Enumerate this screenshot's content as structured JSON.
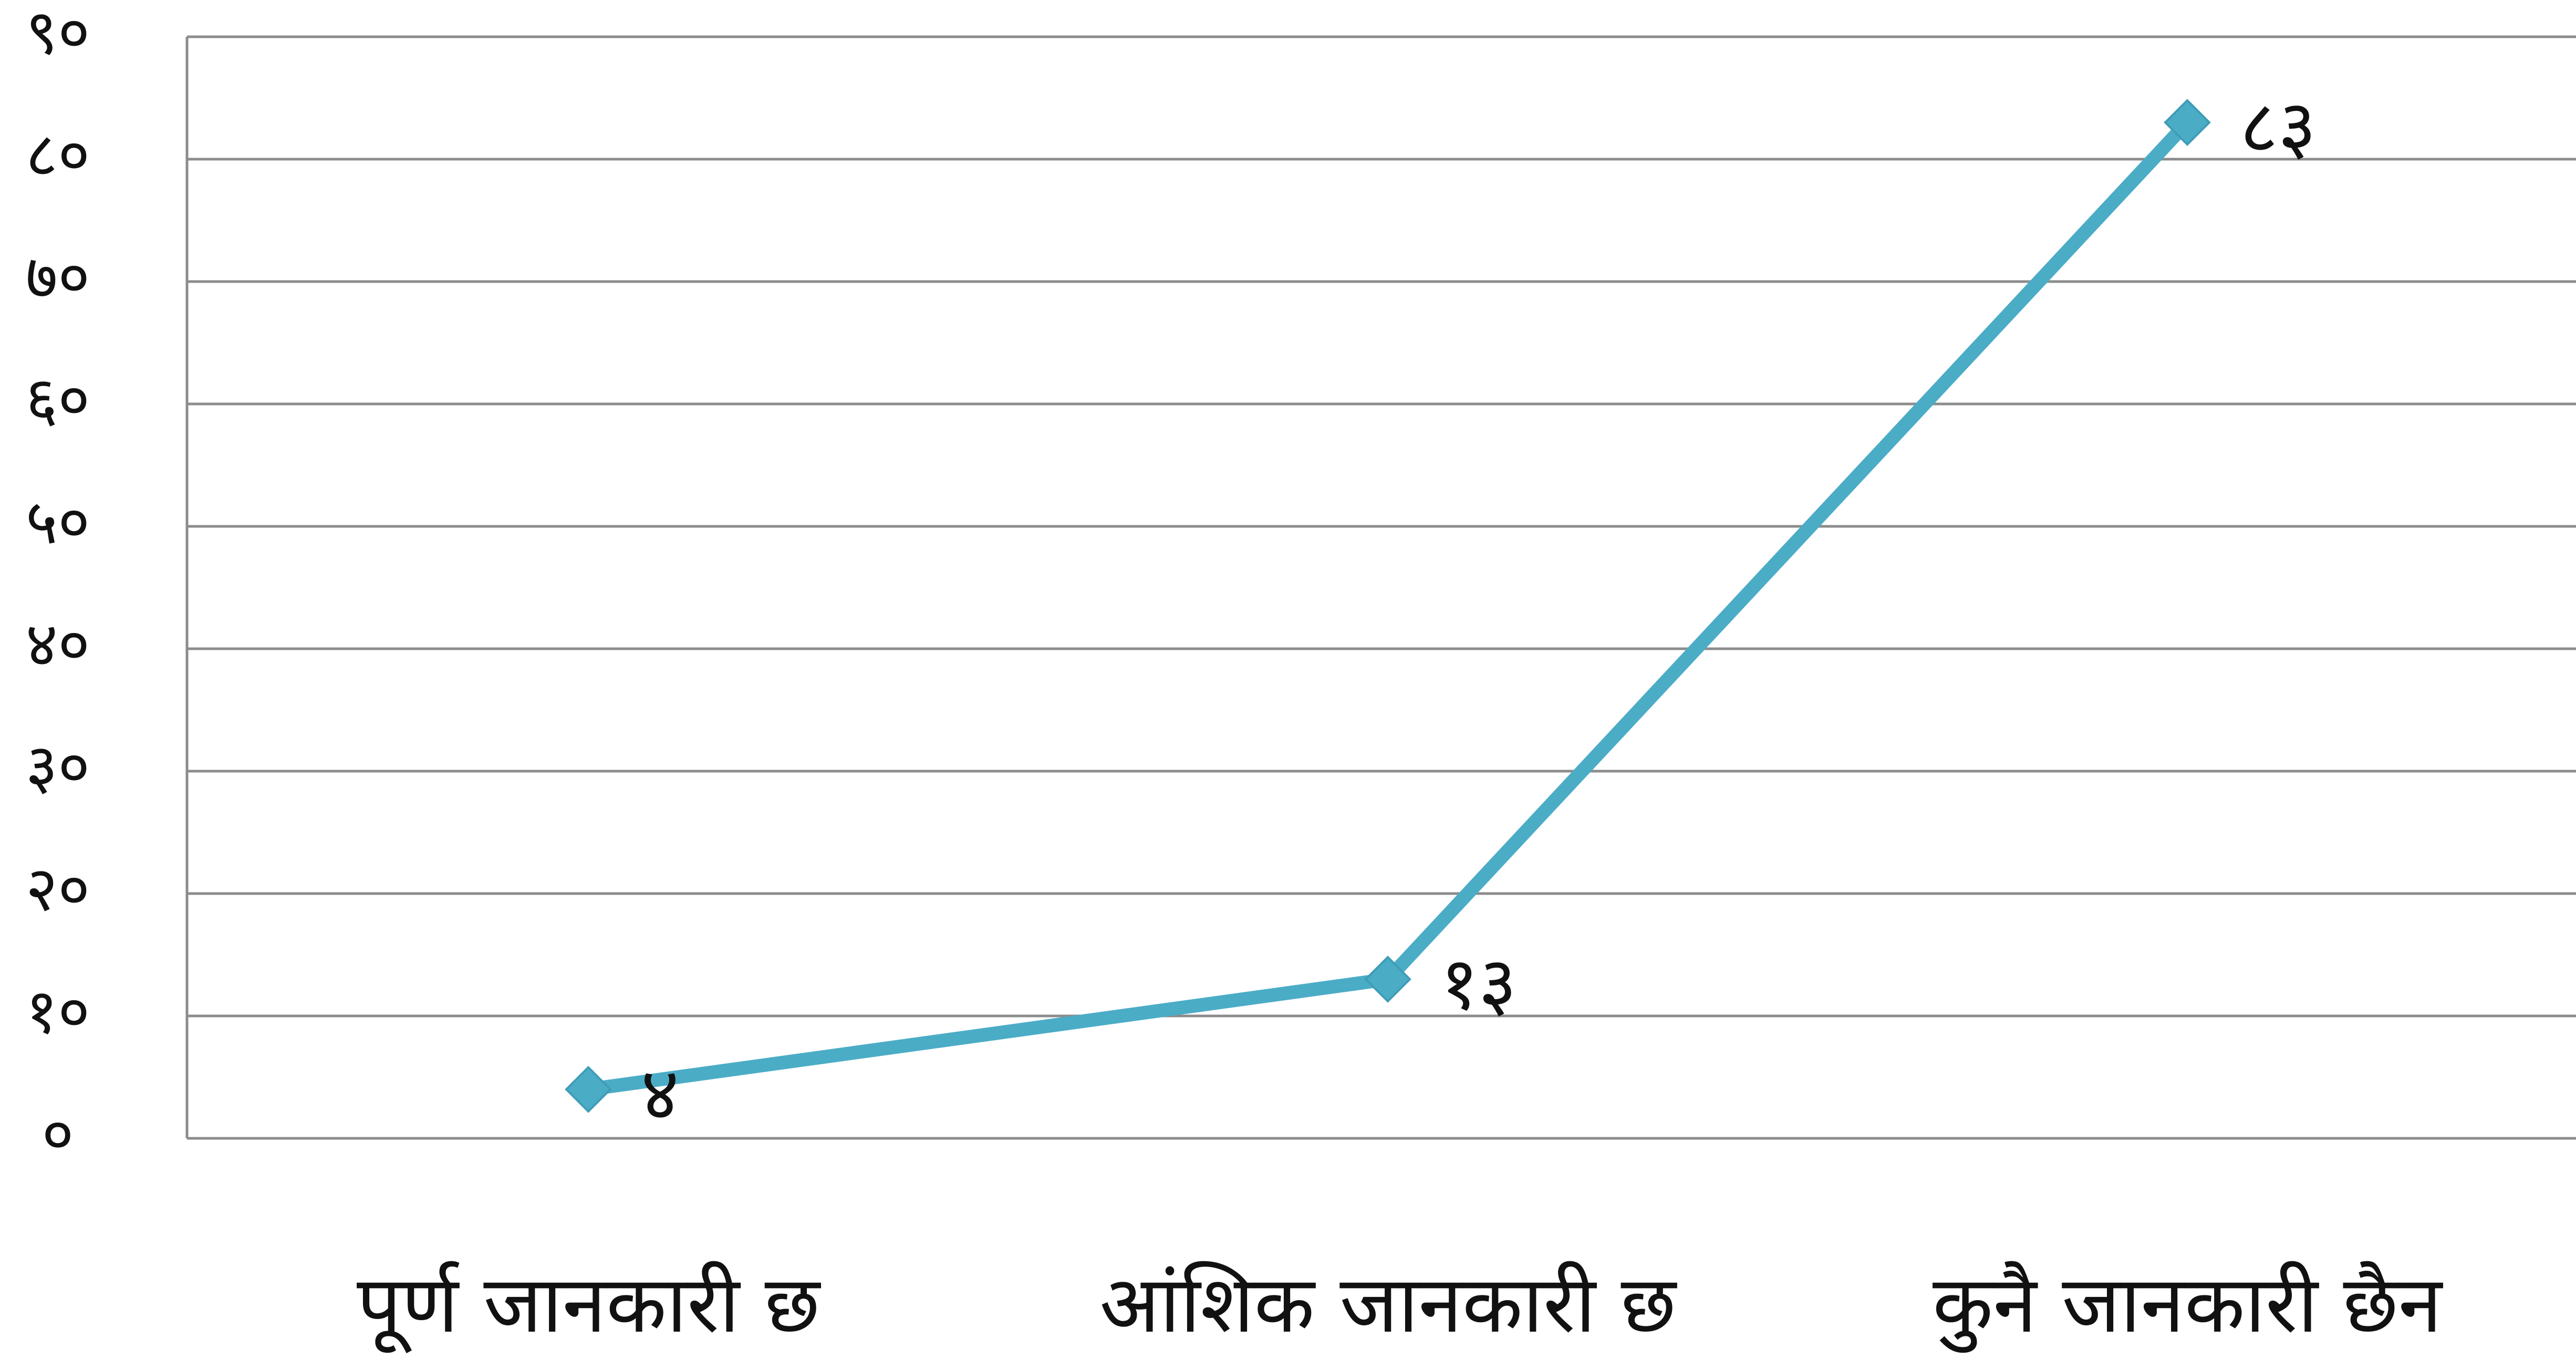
{
  "chart_data": {
    "type": "line",
    "title": "",
    "xlabel": "",
    "ylabel": "",
    "categories": [
      "पूर्ण जानकारी छ",
      "आंशिक जानकारी छ",
      "कुनै जानकारी छैन"
    ],
    "series": [
      {
        "values": [
          4,
          13,
          83
        ],
        "data_labels": [
          "४",
          "१३",
          "८३"
        ],
        "color": "#4BACC6"
      }
    ],
    "ylim": [
      0,
      90
    ],
    "y_ticks": [
      0,
      10,
      20,
      30,
      40,
      50,
      60,
      70,
      80,
      90
    ],
    "y_tick_labels": [
      "०",
      "१०",
      "२०",
      "३०",
      "४०",
      "५०",
      "६०",
      "७०",
      "८०",
      "९०"
    ],
    "grid": true,
    "legend": "none",
    "colors": {
      "grid": "#8c8c8c",
      "axis": "#8c8c8c",
      "text": "#111111"
    }
  }
}
